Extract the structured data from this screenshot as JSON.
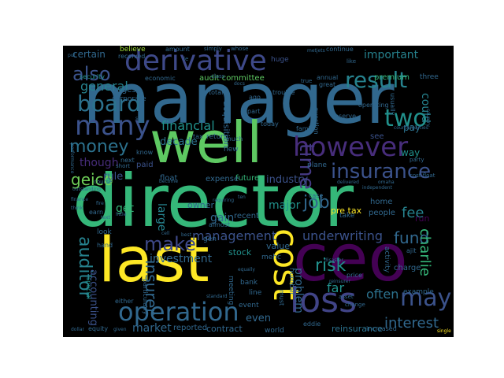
{
  "background_color": "#000000",
  "page_background": "#ffffff",
  "colormap": "viridis",
  "words": [
    {
      "text": "manager",
      "weight": 1.0,
      "color": "#31688e"
    },
    {
      "text": "director",
      "weight": 0.98,
      "color": "#35b779"
    },
    {
      "text": "well",
      "weight": 0.92,
      "color": "#5ec962"
    },
    {
      "text": "last",
      "weight": 0.9,
      "color": "#fde725"
    },
    {
      "text": "ceo",
      "weight": 0.9,
      "color": "#440154"
    },
    {
      "text": "derivative",
      "weight": 0.62,
      "color": "#3e4989"
    },
    {
      "text": "cost",
      "weight": 0.58,
      "color": "#fde725"
    },
    {
      "text": "loss",
      "weight": 0.55,
      "color": "#414487"
    },
    {
      "text": "however",
      "weight": 0.48,
      "color": "#472d7b"
    },
    {
      "text": "many",
      "weight": 0.45,
      "color": "#3b528b"
    },
    {
      "text": "two",
      "weight": 0.44,
      "color": "#21918c"
    },
    {
      "text": "result",
      "weight": 0.4,
      "color": "#26828e"
    },
    {
      "text": "board",
      "weight": 0.4,
      "color": "#2c728e"
    },
    {
      "text": "operation",
      "weight": 0.4,
      "color": "#31688e"
    },
    {
      "text": "insurance",
      "weight": 0.37,
      "color": "#3b528b"
    },
    {
      "text": "may",
      "weight": 0.38,
      "color": "#3b528b"
    },
    {
      "text": "money",
      "weight": 0.33,
      "color": "#2c728e"
    },
    {
      "text": "also",
      "weight": 0.32,
      "color": "#3b528b"
    },
    {
      "text": "make",
      "weight": 0.3,
      "color": "#3e4989"
    },
    {
      "text": "auditor",
      "weight": 0.3,
      "color": "#26828e"
    },
    {
      "text": "time",
      "weight": 0.28,
      "color": "#443983"
    },
    {
      "text": "insurer",
      "weight": 0.26,
      "color": "#31688e"
    },
    {
      "text": "geico",
      "weight": 0.24,
      "color": "#6ece58"
    },
    {
      "text": "fund",
      "weight": 0.23,
      "color": "#31688e"
    },
    {
      "text": "job",
      "weight": 0.22,
      "color": "#31688e"
    },
    {
      "text": "risk",
      "weight": 0.22,
      "color": "#21918c"
    },
    {
      "text": "charlie",
      "weight": 0.21,
      "color": "#35b779"
    },
    {
      "text": "fee",
      "weight": 0.21,
      "color": "#26828e"
    },
    {
      "text": "interest",
      "weight": 0.2,
      "color": "#31688e"
    },
    {
      "text": "important",
      "weight": 0.18,
      "color": "#26828e"
    },
    {
      "text": "financial",
      "weight": 0.2,
      "color": "#21918c"
    },
    {
      "text": "management",
      "weight": 0.18,
      "color": "#3b528b"
    },
    {
      "text": "underwriting",
      "weight": 0.2,
      "color": "#3b528b"
    },
    {
      "text": "general",
      "weight": 0.18,
      "color": "#26828e"
    },
    {
      "text": "far",
      "weight": 0.2,
      "color": "#21918c"
    },
    {
      "text": "often",
      "weight": 0.18,
      "color": "#2c728e"
    },
    {
      "text": "investment",
      "weight": 0.16,
      "color": "#31688e"
    },
    {
      "text": "market",
      "weight": 0.16,
      "color": "#31688e"
    },
    {
      "text": "major",
      "weight": 0.16,
      "color": "#21918c"
    },
    {
      "text": "could",
      "weight": 0.16,
      "color": "#26828e"
    },
    {
      "text": "though",
      "weight": 0.17,
      "color": "#472d7b"
    },
    {
      "text": "decade",
      "weight": 0.14,
      "color": "#2c728e"
    },
    {
      "text": "gain",
      "weight": 0.16,
      "color": "#31688e"
    },
    {
      "text": "large",
      "weight": 0.16,
      "color": "#26828e"
    },
    {
      "text": "industry",
      "weight": 0.14,
      "color": "#3b528b"
    },
    {
      "text": "even",
      "weight": 0.14,
      "color": "#31688e"
    },
    {
      "text": "get",
      "weight": 0.14,
      "color": "#35b779"
    },
    {
      "text": "rule",
      "weight": 0.13,
      "color": "#3b528b"
    },
    {
      "text": "accounting",
      "weight": 0.13,
      "color": "#3b528b"
    },
    {
      "text": "problem",
      "weight": 0.14,
      "color": "#31688e"
    },
    {
      "text": "certain",
      "weight": 0.12,
      "color": "#31688e"
    },
    {
      "text": "way",
      "weight": 0.12,
      "color": "#21918c"
    },
    {
      "text": "pay",
      "weight": 0.12,
      "color": "#2c728e"
    },
    {
      "text": "reinsurance",
      "weight": 0.1,
      "color": "#2c728e"
    },
    {
      "text": "owner",
      "weight": 0.1,
      "color": "#31688e"
    },
    {
      "text": "stock",
      "weight": 0.1,
      "color": "#21918c"
    },
    {
      "text": "value",
      "weight": 0.1,
      "color": "#31688e"
    },
    {
      "text": "run",
      "weight": 0.11,
      "color": "#440154"
    },
    {
      "text": "contract",
      "weight": 0.1,
      "color": "#31688e"
    },
    {
      "text": "reported",
      "weight": 0.09,
      "color": "#31688e"
    },
    {
      "text": "future",
      "weight": 0.09,
      "color": "#35b779"
    },
    {
      "text": "recent",
      "weight": 0.09,
      "color": "#31688e"
    },
    {
      "text": "paid",
      "weight": 0.08,
      "color": "#3b528b"
    },
    {
      "text": "float",
      "weight": 0.08,
      "color": "#31688e"
    },
    {
      "text": "expense",
      "weight": 0.08,
      "color": "#31688e"
    },
    {
      "text": "audit committee",
      "weight": 0.07,
      "color": "#5ec962"
    },
    {
      "text": "acquisition",
      "weight": 0.07,
      "color": "#31688e"
    },
    {
      "text": "number",
      "weight": 0.07,
      "color": "#31688e"
    },
    {
      "text": "must",
      "weight": 0.07,
      "color": "#31688e"
    },
    {
      "text": "world",
      "weight": 0.07,
      "color": "#31688e"
    },
    {
      "text": "believe",
      "weight": 0.06,
      "color": "#a0da39"
    },
    {
      "text": "amount",
      "weight": 0.06,
      "color": "#31688e"
    },
    {
      "text": "simply",
      "weight": 0.05,
      "color": "#31688e"
    },
    {
      "text": "whose",
      "weight": 0.05,
      "color": "#31688e"
    },
    {
      "text": "continue",
      "weight": 0.06,
      "color": "#31688e"
    },
    {
      "text": "received",
      "weight": 0.05,
      "color": "#31688e"
    },
    {
      "text": "economic",
      "weight": 0.06,
      "color": "#31688e"
    },
    {
      "text": "huge",
      "weight": 0.06,
      "color": "#3b528b"
    },
    {
      "text": "security",
      "weight": 0.05,
      "color": "#21918c"
    },
    {
      "text": "largest",
      "weight": 0.06,
      "color": "#31688e"
    },
    {
      "text": "corporate",
      "weight": 0.06,
      "color": "#31688e"
    },
    {
      "text": "special",
      "weight": 0.05,
      "color": "#21918c"
    },
    {
      "text": "either",
      "weight": 0.05,
      "color": "#31688e"
    },
    {
      "text": "earn",
      "weight": 0.05,
      "color": "#31688e"
    },
    {
      "text": "look",
      "weight": 0.06,
      "color": "#31688e"
    },
    {
      "text": "hand",
      "weight": 0.05,
      "color": "#31688e"
    },
    {
      "text": "premium",
      "weight": 0.06,
      "color": "#35b779"
    },
    {
      "text": "annual",
      "weight": 0.05,
      "color": "#31688e"
    },
    {
      "text": "three",
      "weight": 0.05,
      "color": "#31688e"
    },
    {
      "text": "see",
      "weight": 0.05,
      "color": "#3b528b"
    },
    {
      "text": "return",
      "weight": 0.05,
      "color": "#31688e"
    },
    {
      "text": "tax",
      "weight": 0.04,
      "color": "#31688e"
    },
    {
      "text": "total",
      "weight": 0.04,
      "color": "#31688e"
    },
    {
      "text": "today",
      "weight": 0.04,
      "color": "#31688e"
    },
    {
      "text": "home",
      "weight": 0.05,
      "color": "#31688e"
    },
    {
      "text": "pre tax",
      "weight": 0.06,
      "color": "#fde725"
    },
    {
      "text": "people",
      "weight": 0.05,
      "color": "#31688e"
    },
    {
      "text": "charge",
      "weight": 0.06,
      "color": "#31688e"
    },
    {
      "text": "example",
      "weight": 0.05,
      "color": "#31688e"
    },
    {
      "text": "activity",
      "weight": 0.05,
      "color": "#31688e"
    },
    {
      "text": "ajit",
      "weight": 0.05,
      "color": "#31688e"
    },
    {
      "text": "event",
      "weight": 0.05,
      "color": "#31688e"
    },
    {
      "text": "line",
      "weight": 0.05,
      "color": "#31688e"
    },
    {
      "text": "bank",
      "weight": 0.05,
      "color": "#31688e"
    },
    {
      "text": "meeting",
      "weight": 0.04,
      "color": "#31688e"
    },
    {
      "text": "mehc",
      "weight": 0.05,
      "color": "#31688e"
    },
    {
      "text": "gen",
      "weight": 0.05,
      "color": "#31688e"
    },
    {
      "text": "almost",
      "weight": 0.05,
      "color": "#31688e"
    },
    {
      "text": "increased",
      "weight": 0.05,
      "color": "#31688e"
    },
    {
      "text": "eddie",
      "weight": 0.04,
      "color": "#31688e"
    },
    {
      "text": "equity",
      "weight": 0.05,
      "color": "#31688e"
    },
    {
      "text": "cost float",
      "weight": 0.04,
      "color": "#31688e"
    },
    {
      "text": "trouble",
      "weight": 0.04,
      "color": "#31688e"
    },
    {
      "text": "omaha",
      "weight": 0.03,
      "color": "#31688e"
    },
    {
      "text": "class",
      "weight": 0.04,
      "color": "#31688e"
    },
    {
      "text": "le",
      "weight": 0.04,
      "color": "#31688e"
    },
    {
      "text": "ago",
      "weight": 0.04,
      "color": "#31688e"
    },
    {
      "text": "part",
      "weight": 0.04,
      "color": "#31688e"
    },
    {
      "text": "next",
      "weight": 0.04,
      "color": "#31688e"
    },
    {
      "text": "short",
      "weight": 0.04,
      "color": "#31688e"
    },
    {
      "text": "know",
      "weight": 0.04,
      "color": "#31688e"
    },
    {
      "text": "plane",
      "weight": 0.04,
      "color": "#31688e"
    },
    {
      "text": "take",
      "weight": 0.05,
      "color": "#31688e"
    },
    {
      "text": "course",
      "weight": 0.04,
      "color": "#31688e"
    },
    {
      "text": "reserve",
      "weight": 0.04,
      "color": "#31688e"
    },
    {
      "text": "family",
      "weight": 0.04,
      "color": "#31688e"
    },
    {
      "text": "much",
      "weight": 0.04,
      "color": "#31688e"
    },
    {
      "text": "new",
      "weight": 0.04,
      "color": "#31688e"
    },
    {
      "text": "put",
      "weight": 0.03,
      "color": "#31688e"
    },
    {
      "text": "become",
      "weight": 0.03,
      "color": "#31688e"
    },
    {
      "text": "still",
      "weight": 0.03,
      "color": "#31688e"
    },
    {
      "text": "performance",
      "weight": 0.03,
      "color": "#31688e"
    },
    {
      "text": "outstanding",
      "weight": 0.03,
      "color": "#31688e"
    },
    {
      "text": "finance",
      "weight": 0.03,
      "color": "#31688e"
    },
    {
      "text": "given",
      "weight": 0.03,
      "color": "#31688e"
    },
    {
      "text": "dollar",
      "weight": 0.03,
      "color": "#31688e"
    },
    {
      "text": "single",
      "weight": 0.03,
      "color": "#fde725"
    },
    {
      "text": "counterparties",
      "weight": 0.03,
      "color": "#31688e"
    },
    {
      "text": "country",
      "weight": 0.03,
      "color": "#31688e"
    },
    {
      "text": "usually",
      "weight": 0.03,
      "color": "#31688e"
    },
    {
      "text": "question",
      "weight": 0.03,
      "color": "#31688e"
    },
    {
      "text": "delivered",
      "weight": 0.03,
      "color": "#31688e"
    },
    {
      "text": "independent",
      "weight": 0.03,
      "color": "#31688e"
    },
    {
      "text": "disaster",
      "weight": 0.03,
      "color": "#31688e"
    },
    {
      "text": "reinsurer",
      "weight": 0.03,
      "color": "#31688e"
    },
    {
      "text": "particularly",
      "weight": 0.04,
      "color": "#31688e"
    },
    {
      "text": "standard",
      "weight": 0.03,
      "color": "#31688e"
    },
    {
      "text": "asset",
      "weight": 0.04,
      "color": "#31688e"
    },
    {
      "text": "change",
      "weight": 0.04,
      "color": "#31688e"
    },
    {
      "text": "party",
      "weight": 0.03,
      "color": "#31688e"
    },
    {
      "text": "metjets",
      "weight": 0.03,
      "color": "#31688e"
    },
    {
      "text": "like",
      "weight": 0.03,
      "color": "#31688e"
    },
    {
      "text": "great",
      "weight": 0.03,
      "color": "#31688e"
    },
    {
      "text": "true",
      "weight": 0.03,
      "color": "#31688e"
    },
    {
      "text": "operating",
      "weight": 0.03,
      "color": "#31688e"
    },
    {
      "text": "price",
      "weight": 0.03,
      "color": "#31688e"
    },
    {
      "text": "case",
      "weight": 0.03,
      "color": "#31688e"
    },
    {
      "text": "little",
      "weight": 0.03,
      "color": "#31688e"
    },
    {
      "text": "text",
      "weight": 0.02,
      "color": "#31688e"
    },
    {
      "text": "think",
      "weight": 0.02,
      "color": "#31688e"
    },
    {
      "text": "ten",
      "weight": 0.02,
      "color": "#31688e"
    },
    {
      "text": "requiring",
      "weight": 0.02,
      "color": "#31688e"
    },
    {
      "text": "best",
      "weight": 0.02,
      "color": "#31688e"
    },
    {
      "text": "cell",
      "weight": 0.02,
      "color": "#31688e"
    },
    {
      "text": "fire",
      "weight": 0.02,
      "color": "#31688e"
    },
    {
      "text": "docs",
      "weight": 0.02,
      "color": "#31688e"
    },
    {
      "text": "equally",
      "weight": 0.02,
      "color": "#31688e"
    }
  ]
}
